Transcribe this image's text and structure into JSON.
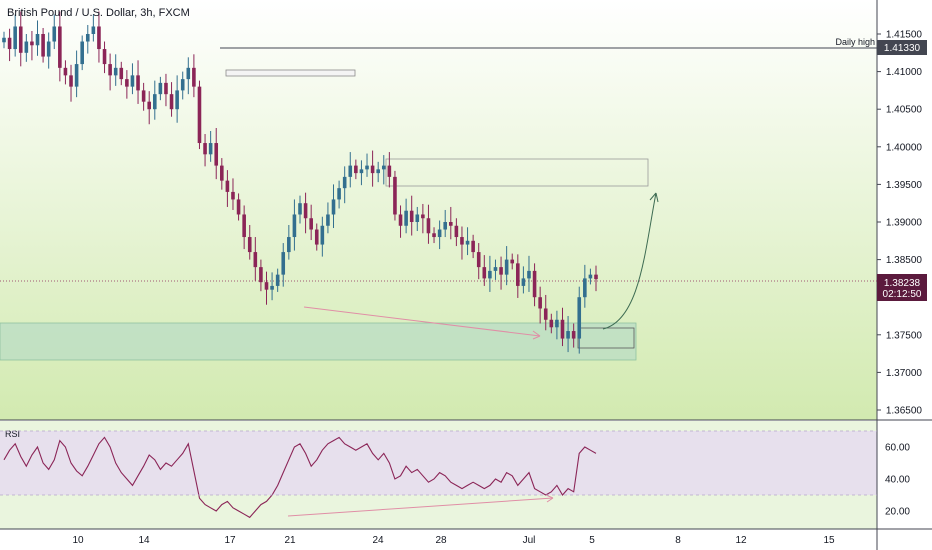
{
  "header": {
    "title": "British Pound / U.S. Dollar, 3h, FXCM"
  },
  "price_axis": {
    "ticks": [
      "1.41500",
      "1.41000",
      "1.40500",
      "1.40000",
      "1.39500",
      "1.39000",
      "1.38500",
      "1.38000",
      "1.37500",
      "1.37000",
      "1.36500"
    ],
    "tick_values": [
      1.415,
      1.41,
      1.405,
      1.4,
      1.395,
      1.39,
      1.385,
      1.38,
      1.375,
      1.37,
      1.365
    ],
    "daily_high_label": "Daily high",
    "daily_high_value": "1.41330",
    "current_price": "1.38238",
    "countdown": "02:12:50",
    "colors": {
      "daily_high_bg": "#434651",
      "current_bg": "#5b1a3d"
    }
  },
  "rsi_panel": {
    "label": "RSI",
    "ticks": [
      "60.00",
      "40.00",
      "20.00"
    ],
    "tick_values": [
      60,
      40,
      20
    ],
    "band": [
      30,
      70
    ]
  },
  "time_axis": {
    "labels": [
      "10",
      "14",
      "17",
      "21",
      "24",
      "28",
      "Jul",
      "5",
      "8",
      "12",
      "15"
    ]
  },
  "colors": {
    "bullish": "#336f8f",
    "bearish": "#8b2557",
    "background_top": "#ffffff",
    "background_bottom": "#d2eab0",
    "support_zone": "#b9dcc4",
    "rsi_band": "#e6dcf0",
    "rsi_line": "#8b2557",
    "divergence_line": "#e08ea6",
    "projection_arrow": "#3d6b52"
  },
  "chart_data": [
    {
      "type": "candlestick",
      "title": "British Pound / U.S. Dollar, 3h, FXCM",
      "ylim": [
        1.3625,
        1.4185
      ],
      "x_labels": [
        "10",
        "14",
        "17",
        "21",
        "24",
        "28",
        "Jul",
        "5",
        "8",
        "12",
        "15"
      ],
      "close_path": [
        1.4145,
        1.413,
        1.416,
        1.4125,
        1.414,
        1.4135,
        1.415,
        1.412,
        1.414,
        1.416,
        1.4105,
        1.4095,
        1.408,
        1.411,
        1.414,
        1.415,
        1.416,
        1.413,
        1.411,
        1.4095,
        1.4105,
        1.409,
        1.408,
        1.4095,
        1.4075,
        1.406,
        1.405,
        1.407,
        1.4085,
        1.407,
        1.405,
        1.4075,
        1.409,
        1.4105,
        1.408,
        1.4005,
        1.399,
        1.4005,
        1.3975,
        1.3955,
        1.394,
        1.393,
        1.391,
        1.388,
        1.386,
        1.384,
        1.382,
        1.381,
        1.3815,
        1.383,
        1.386,
        1.388,
        1.391,
        1.3925,
        1.3905,
        1.389,
        1.387,
        1.3895,
        1.391,
        1.393,
        1.3945,
        1.396,
        1.3975,
        1.3965,
        1.397,
        1.3975,
        1.3965,
        1.397,
        1.3975,
        1.396,
        1.391,
        1.3895,
        1.3915,
        1.39,
        1.391,
        1.3905,
        1.3885,
        1.388,
        1.389,
        1.39,
        1.3895,
        1.388,
        1.387,
        1.3875,
        1.386,
        1.384,
        1.3825,
        1.3835,
        1.384,
        1.383,
        1.385,
        1.3845,
        1.3815,
        1.3825,
        1.3835,
        1.38,
        1.3785,
        1.377,
        1.376,
        1.377,
        1.3745,
        1.3755,
        1.3745,
        1.38,
        1.3825,
        1.383,
        1.3824
      ],
      "last_value": 1.38238,
      "daily_high": 1.4133,
      "annotations": [
        "Daily high"
      ]
    },
    {
      "type": "line",
      "title": "RSI",
      "ylim": [
        12,
        75
      ],
      "values": [
        52,
        58,
        62,
        54,
        48,
        55,
        60,
        50,
        46,
        52,
        64,
        60,
        50,
        45,
        42,
        48,
        55,
        62,
        66,
        60,
        50,
        44,
        40,
        36,
        42,
        48,
        55,
        52,
        46,
        50,
        48,
        52,
        56,
        62,
        45,
        28,
        24,
        22,
        20,
        24,
        26,
        22,
        20,
        18,
        16,
        20,
        24,
        26,
        30,
        36,
        44,
        52,
        60,
        62,
        56,
        48,
        52,
        58,
        62,
        64,
        66,
        62,
        60,
        58,
        60,
        62,
        56,
        52,
        56,
        50,
        40,
        42,
        48,
        44,
        46,
        42,
        38,
        40,
        44,
        42,
        38,
        36,
        34,
        36,
        38,
        36,
        34,
        36,
        40,
        38,
        44,
        42,
        36,
        40,
        44,
        34,
        32,
        30,
        32,
        36,
        30,
        34,
        32,
        56,
        60,
        58,
        56
      ],
      "band": [
        30,
        70
      ]
    }
  ]
}
